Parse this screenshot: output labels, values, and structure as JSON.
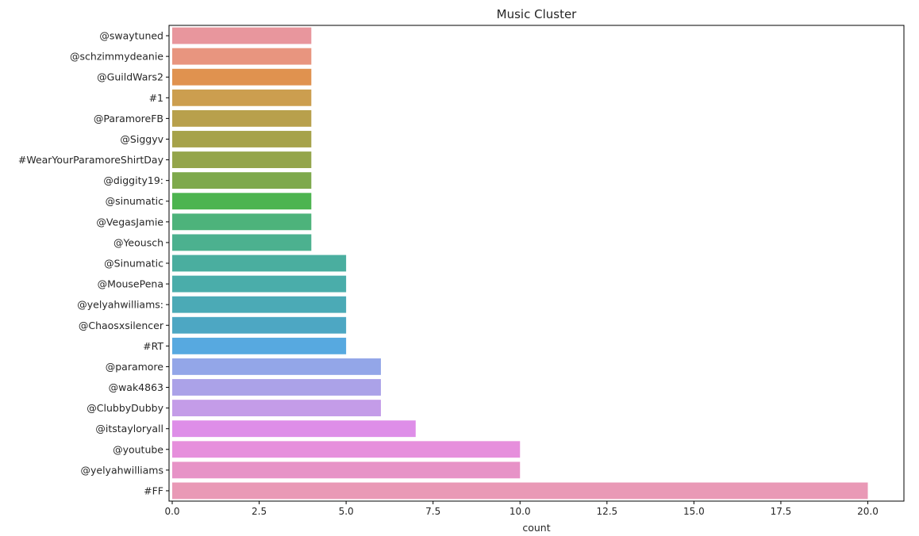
{
  "chart_data": {
    "type": "bar",
    "orientation": "horizontal",
    "title": "Music Cluster",
    "xlabel": "count",
    "ylabel": "",
    "xlim": [
      0,
      21
    ],
    "xticks": [
      "0.0",
      "2.5",
      "5.0",
      "7.5",
      "10.0",
      "12.5",
      "15.0",
      "17.5",
      "20.0"
    ],
    "grid": false,
    "categories": [
      "@swaytuned",
      "@schzimmydeanie",
      "@GuildWars2",
      "#1",
      "@ParamoreFB",
      "@Siggyv",
      "#WearYourParamoreShirtDay",
      "@diggity19:",
      "@sinumatic",
      "@VegasJamie",
      "@Yeousch",
      "@Sinumatic",
      "@MousePena",
      "@yelyahwilliams:",
      "@Chaosxsilencer",
      "#RT",
      "@paramore",
      "@wak4863",
      "@ClubbyDubby",
      "@itstayloryall",
      "@youtube",
      "@yelyahwilliams",
      "#FF"
    ],
    "values": [
      4,
      4,
      4,
      4,
      4,
      4,
      4,
      4,
      4,
      4,
      4,
      5,
      5,
      5,
      5,
      5,
      6,
      6,
      6,
      7,
      10,
      10,
      20
    ],
    "colors": [
      "#e8969d",
      "#e8957f",
      "#e0924f",
      "#cc9e4f",
      "#b8a04c",
      "#a6a24a",
      "#94a54b",
      "#7ea94c",
      "#4db450",
      "#4db37b",
      "#4cb18f",
      "#4aae9f",
      "#4aadaa",
      "#4baab6",
      "#4da7c3",
      "#57a9e0",
      "#93a6e8",
      "#aba2e8",
      "#c49ce8",
      "#de8ee8",
      "#e68fdc",
      "#e793c7",
      "#e999b6"
    ]
  }
}
